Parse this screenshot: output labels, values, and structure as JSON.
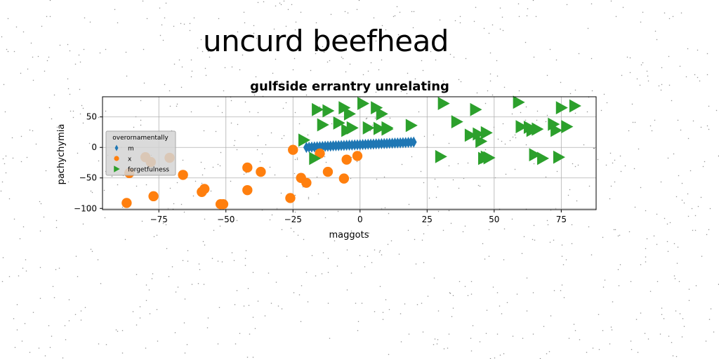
{
  "figure": {
    "suptitle": "uncurd beefhead"
  },
  "chart_data": {
    "type": "scatter",
    "title": "gulfside errantry unrelating",
    "xlabel": "maggots",
    "ylabel": "pachychymia",
    "xlim": [
      -96,
      88
    ],
    "ylim": [
      -102,
      83
    ],
    "xticks": [
      -75,
      -50,
      -25,
      0,
      25,
      50,
      75
    ],
    "yticks": [
      -100,
      -50,
      0,
      50
    ],
    "grid": true,
    "legend": {
      "title": "overornamentally",
      "placement": "center-left"
    },
    "series": [
      {
        "name": "m",
        "marker": "thin_diamond",
        "color": "#1f77b4",
        "x": [
          -20,
          -19,
          -18,
          -17,
          -16,
          -15,
          -14,
          -13,
          -12,
          -11,
          -10,
          -9,
          -8,
          -7,
          -6,
          -5,
          -4,
          -3,
          -2,
          -1,
          0,
          1,
          2,
          3,
          4,
          5,
          6,
          7,
          8,
          9,
          10,
          11,
          12,
          13,
          14,
          15,
          16,
          17,
          18,
          19,
          20
        ],
        "y": [
          0,
          0.3,
          0.6,
          0.9,
          1.1,
          1.3,
          1.6,
          1.8,
          2.0,
          2.2,
          2.5,
          2.7,
          2.9,
          3.1,
          3.3,
          3.5,
          3.7,
          3.9,
          4.1,
          4.3,
          4.5,
          4.7,
          4.9,
          5.1,
          5.3,
          5.5,
          5.7,
          5.9,
          6.1,
          6.3,
          6.5,
          6.7,
          6.9,
          7.1,
          7.3,
          7.5,
          7.7,
          7.9,
          8.1,
          8.4,
          8.7
        ]
      },
      {
        "name": "x",
        "marker": "circle",
        "color": "#ff7f0e",
        "x": [
          -87,
          -86,
          -80,
          -78,
          -77,
          -71,
          -66,
          -59,
          -58,
          -52,
          -51,
          -42,
          -42,
          -37,
          -26,
          -25,
          -22,
          -20,
          -15,
          -12,
          -6,
          -5,
          -1
        ],
        "y": [
          -91,
          -42,
          -16,
          -24,
          -80,
          -17,
          -45,
          -73,
          -68,
          -93,
          -93,
          -70,
          -33,
          -40,
          -83,
          -4,
          -50,
          -58,
          -10,
          -40,
          -51,
          -20,
          -14
        ]
      },
      {
        "name": "forgetfulness",
        "marker": "triangle_right",
        "color": "#2ca02c",
        "x": [
          -21,
          -17,
          -16,
          -14,
          -12,
          -8,
          -6,
          -5,
          -4,
          -3,
          1,
          3,
          6,
          7,
          8,
          10,
          10,
          19,
          30,
          31,
          36,
          41,
          43,
          44,
          45,
          46,
          47,
          47,
          48,
          59,
          60,
          63,
          64,
          65,
          66,
          68,
          72,
          73,
          74,
          75,
          77,
          80
        ],
        "y": [
          12,
          -18,
          62,
          37,
          60,
          40,
          65,
          28,
          55,
          32,
          72,
          32,
          65,
          31,
          55,
          30,
          32,
          36,
          -15,
          72,
          42,
          20,
          62,
          22,
          10,
          -18,
          -16,
          24,
          -17,
          74,
          34,
          33,
          28,
          -12,
          30,
          -18,
          38,
          28,
          -16,
          65,
          34,
          68
        ]
      }
    ]
  }
}
